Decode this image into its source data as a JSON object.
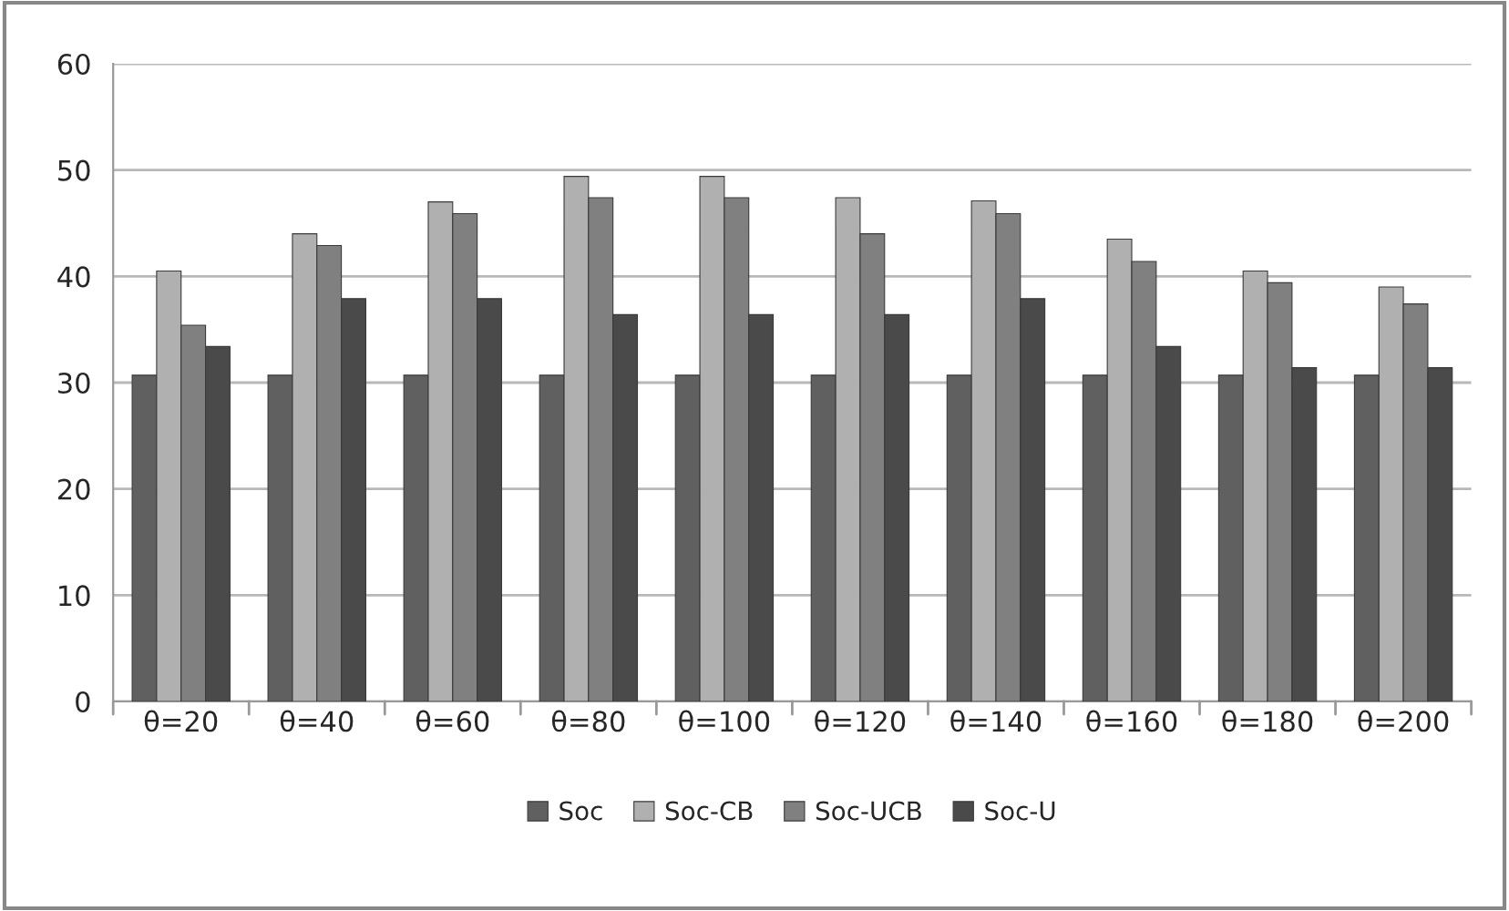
{
  "chart_data": {
    "type": "bar",
    "categories": [
      "θ=20",
      "θ=40",
      "θ=60",
      "θ=80",
      "θ=100",
      "θ=120",
      "θ=140",
      "θ=160",
      "θ=180",
      "θ=200"
    ],
    "series": [
      {
        "name": "Soc",
        "color": "#606060",
        "values": [
          30.7,
          30.7,
          30.7,
          30.7,
          30.7,
          30.7,
          30.7,
          30.7,
          30.7,
          30.7
        ]
      },
      {
        "name": "Soc-CB",
        "color": "#b0b0b0",
        "values": [
          40.5,
          44.0,
          47.0,
          49.4,
          49.4,
          47.4,
          47.1,
          43.5,
          40.5,
          39.0
        ]
      },
      {
        "name": "Soc-UCB",
        "color": "#808080",
        "values": [
          35.4,
          42.9,
          45.9,
          47.4,
          47.4,
          44.0,
          45.9,
          41.4,
          39.4,
          37.4
        ]
      },
      {
        "name": "Soc-U",
        "color": "#4a4a4a",
        "values": [
          33.4,
          37.9,
          37.9,
          36.4,
          36.4,
          36.4,
          37.9,
          33.4,
          31.4,
          31.4
        ]
      }
    ],
    "ylim": [
      0,
      60
    ],
    "yticks": [
      0,
      10,
      20,
      30,
      40,
      50,
      60
    ],
    "grid": "y",
    "legend": "bottom"
  }
}
